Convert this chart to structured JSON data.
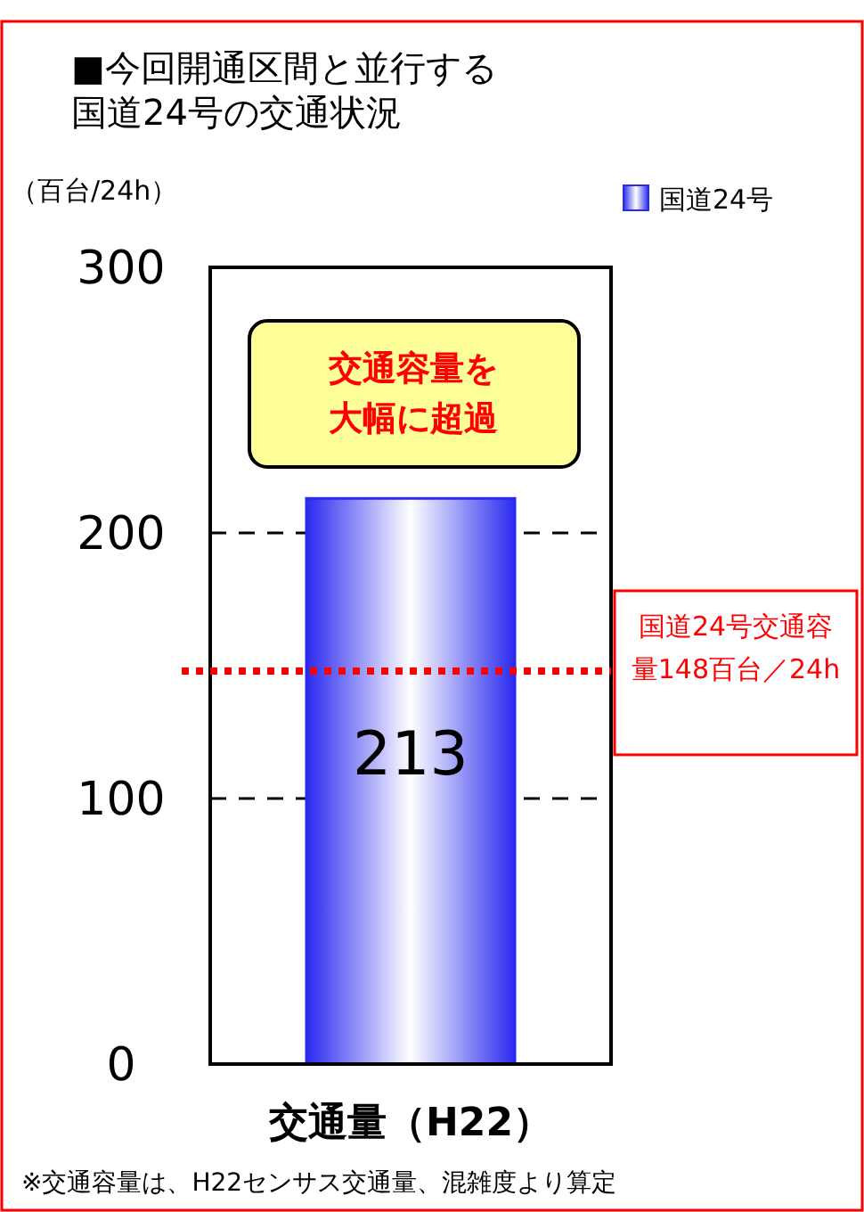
{
  "chart_data": {
    "type": "bar",
    "title": "■今回開通区間と並行する国道24号の交通状況",
    "ylabel": "（百台/24h）",
    "categories": [
      "交通量（H22）"
    ],
    "series": [
      {
        "name": "国道24号",
        "color": "#2a2aee",
        "values": [
          213
        ]
      }
    ],
    "ylim": [
      0,
      300
    ],
    "yticks": [
      0,
      100,
      200,
      300
    ],
    "grid": "y",
    "legend": "top right",
    "data_labels": true,
    "ref_lines": [
      {
        "axis": "y",
        "value": 148,
        "label": "国道24号交通容量148百台／24h",
        "color": "#ff0000",
        "line_style": "dotted"
      }
    ],
    "annotations": [
      "交通容量を大幅に超過",
      "※交通容量は、H22センサス交通量、混雑度より算定"
    ]
  }
}
